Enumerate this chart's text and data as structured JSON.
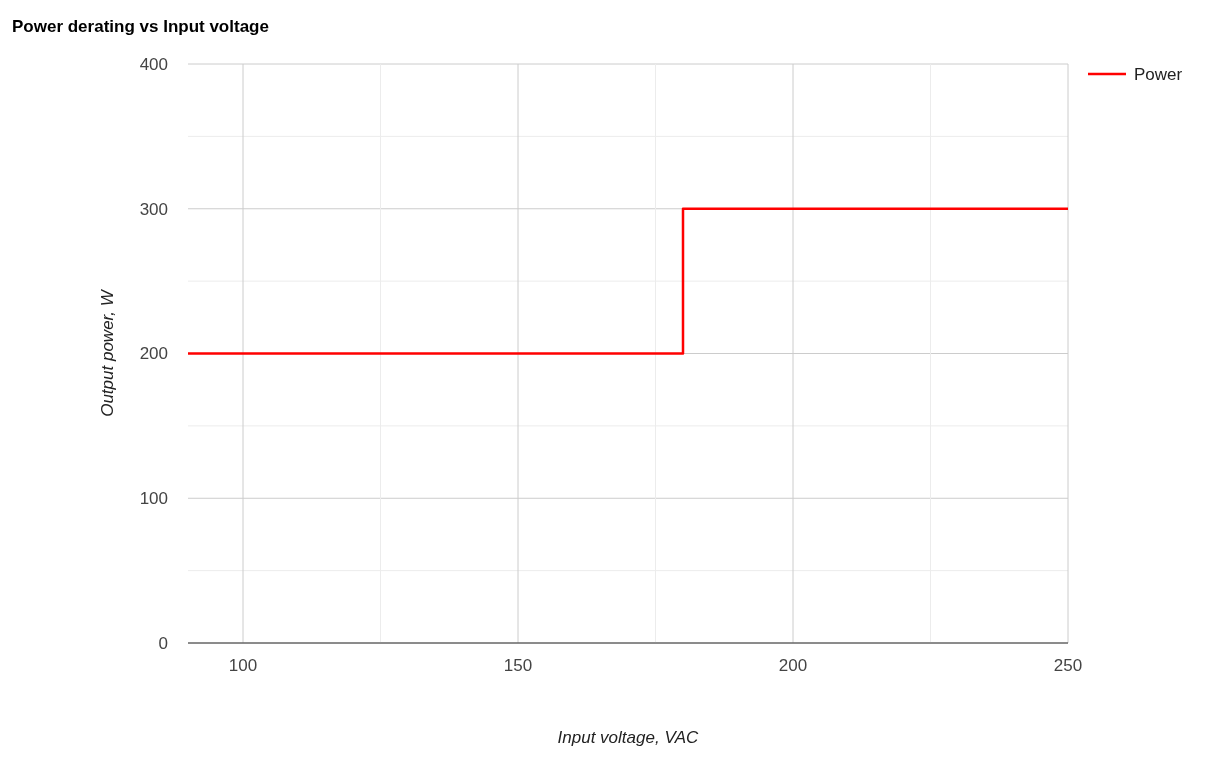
{
  "chart_data": {
    "type": "step",
    "title": "Power derating vs Input voltage",
    "xlabel": "Input voltage, VAC",
    "ylabel": "Output power, W",
    "x": [
      90,
      180,
      250
    ],
    "series": [
      {
        "name": "Power",
        "color": "#ff0000",
        "values": [
          200,
          300,
          300
        ]
      }
    ],
    "xlim": [
      90,
      250
    ],
    "xticks": [
      100,
      {
        "value": 125,
        "label": null
      },
      150,
      {
        "value": 175,
        "label": null
      },
      200,
      {
        "value": 225,
        "label": null
      },
      250
    ],
    "ylim": [
      0,
      400
    ],
    "yticks": [
      0,
      {
        "value": 50,
        "label": null
      },
      100,
      {
        "value": 150,
        "label": null
      },
      200,
      {
        "value": 250,
        "label": null
      },
      300,
      {
        "value": 350,
        "label": null
      },
      400
    ],
    "grid": true,
    "legend": "top right"
  }
}
